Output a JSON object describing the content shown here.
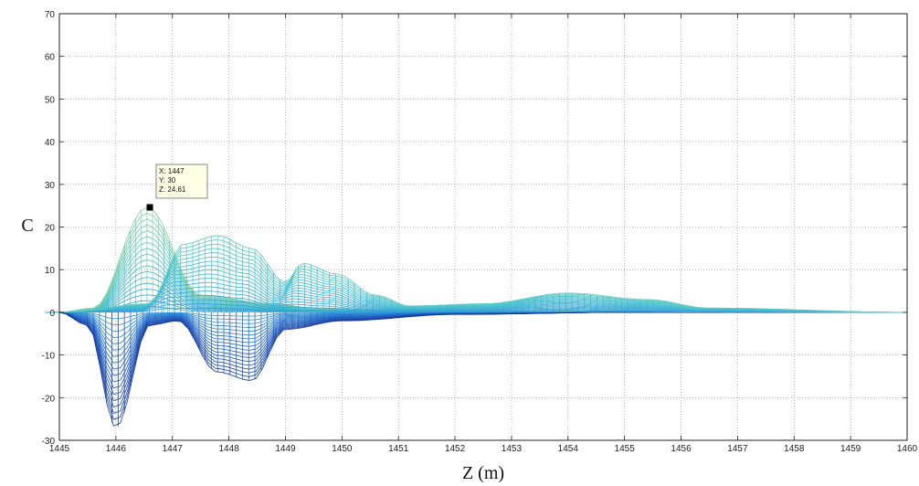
{
  "chart_data": {
    "type": "line",
    "subtype": "3d-mesh-side-view",
    "xlabel": "Z (m)",
    "ylabel": "C",
    "xlim": [
      1445,
      1460
    ],
    "ylim": [
      -30,
      70
    ],
    "x_ticks": [
      1445,
      1446,
      1447,
      1448,
      1449,
      1450,
      1451,
      1452,
      1453,
      1454,
      1455,
      1456,
      1457,
      1458,
      1459,
      1460
    ],
    "y_ticks": [
      -30,
      -20,
      -10,
      0,
      10,
      20,
      30,
      40,
      50,
      60,
      70
    ],
    "grid": true,
    "grid_style": "dotted",
    "colormap": [
      "#0d2a8c",
      "#1f5fc4",
      "#2e95d8",
      "#46c2d0",
      "#8fd49a"
    ],
    "series": [
      {
        "x": [
          1445,
          1445.6,
          1446.55,
          1447.5,
          1448.8,
          1449.5,
          1451,
          1452,
          1454,
          1456,
          1460
        ],
        "values": [
          0,
          1,
          24.6,
          4,
          2,
          1,
          0.5,
          0.3,
          0.3,
          0.2,
          0
        ]
      },
      {
        "x": [
          1445,
          1445.5,
          1446.0,
          1446.6,
          1447.1,
          1447.8,
          1448.4,
          1449.0,
          1450.0,
          1452,
          1455,
          1460
        ],
        "values": [
          0,
          -3,
          -27,
          -3,
          -2,
          -14,
          -16,
          -4,
          -2,
          -0.5,
          0,
          0
        ]
      },
      {
        "x": [
          1445,
          1446.6,
          1447.2,
          1447.8,
          1448.4,
          1449.0,
          1449.3,
          1449.9,
          1450.6,
          1451.2,
          1452.5,
          1454.0,
          1455.4,
          1456.5,
          1460
        ],
        "values": [
          0,
          2,
          16,
          18,
          15,
          7,
          11.5,
          9,
          4,
          1.5,
          2,
          4.5,
          3,
          1,
          0
        ]
      }
    ],
    "datatip": {
      "x_line": "X: 1447",
      "y_line": "Y: 30",
      "z_line": "Z: 24.61",
      "marker_x": 1446.6,
      "marker_y": 24.61
    }
  }
}
